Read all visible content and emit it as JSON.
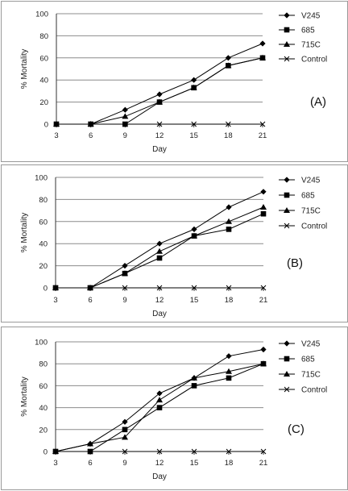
{
  "chart_data": [
    {
      "type": "line",
      "panel_label": "(A)",
      "xlabel": "Day",
      "ylabel": "% Mortality",
      "x": [
        3,
        6,
        9,
        12,
        15,
        18,
        21
      ],
      "ylim": [
        0,
        100
      ],
      "yticks": [
        0,
        20,
        40,
        60,
        80,
        100
      ],
      "grid": "horizontal",
      "legend_position": "right",
      "series": [
        {
          "name": "V245",
          "marker": "diamond",
          "values": [
            0,
            0,
            13,
            27,
            40,
            60,
            73
          ]
        },
        {
          "name": "685",
          "marker": "square",
          "values": [
            0,
            0,
            0,
            20,
            33,
            53,
            60
          ]
        },
        {
          "name": "715C",
          "marker": "triangle",
          "values": [
            0,
            0,
            7,
            20,
            33,
            53,
            60
          ]
        },
        {
          "name": "Control",
          "marker": "x",
          "values": [
            0,
            0,
            0,
            0,
            0,
            0,
            0
          ]
        }
      ]
    },
    {
      "type": "line",
      "panel_label": "(B)",
      "xlabel": "Day",
      "ylabel": "% Mortality",
      "x": [
        3,
        6,
        9,
        12,
        15,
        18,
        21
      ],
      "ylim": [
        0,
        100
      ],
      "yticks": [
        0,
        20,
        40,
        60,
        80,
        100
      ],
      "grid": "horizontal",
      "legend_position": "right",
      "series": [
        {
          "name": "V245",
          "marker": "diamond",
          "values": [
            0,
            0,
            20,
            40,
            53,
            73,
            87
          ]
        },
        {
          "name": "685",
          "marker": "square",
          "values": [
            0,
            0,
            13,
            27,
            47,
            53,
            67
          ]
        },
        {
          "name": "715C",
          "marker": "triangle",
          "values": [
            0,
            0,
            13,
            33,
            47,
            60,
            73
          ]
        },
        {
          "name": "Control",
          "marker": "x",
          "values": [
            0,
            0,
            0,
            0,
            0,
            0,
            0
          ]
        }
      ]
    },
    {
      "type": "line",
      "panel_label": "(C)",
      "xlabel": "Day",
      "ylabel": "% Mortality",
      "x": [
        3,
        6,
        9,
        12,
        15,
        18,
        21
      ],
      "ylim": [
        0,
        100
      ],
      "yticks": [
        0,
        20,
        40,
        60,
        80,
        100
      ],
      "grid": "horizontal",
      "legend_position": "right",
      "series": [
        {
          "name": "V245",
          "marker": "diamond",
          "values": [
            0,
            7,
            27,
            53,
            67,
            87,
            93
          ]
        },
        {
          "name": "685",
          "marker": "square",
          "values": [
            0,
            0,
            20,
            40,
            60,
            67,
            80
          ]
        },
        {
          "name": "715C",
          "marker": "triangle",
          "values": [
            0,
            7,
            13,
            47,
            67,
            73,
            80
          ]
        },
        {
          "name": "Control",
          "marker": "x",
          "values": [
            0,
            0,
            0,
            0,
            0,
            0,
            0
          ]
        }
      ]
    }
  ]
}
